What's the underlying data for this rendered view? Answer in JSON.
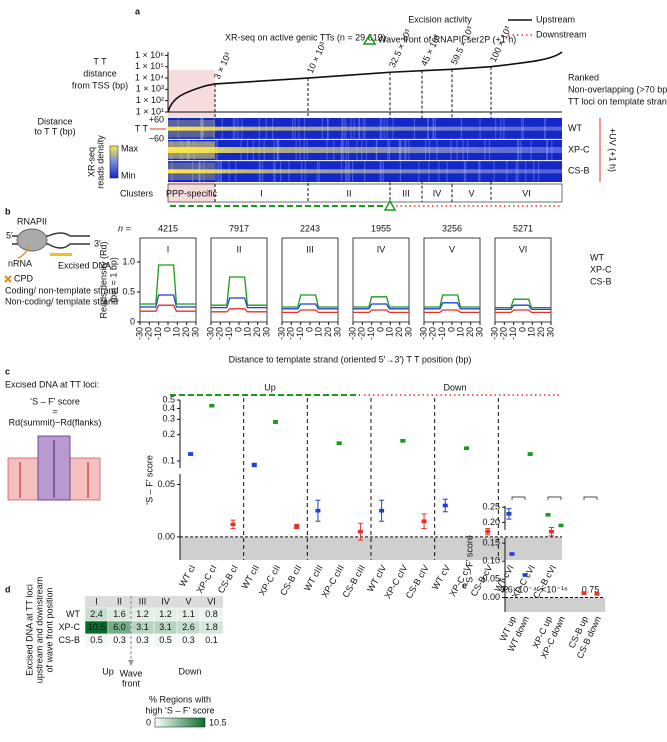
{
  "panel_a": {
    "label": "a",
    "title": "Excision activity",
    "subtitle": "XR-seq on active genic TTs (n = 29,612)",
    "legend": {
      "wave_front": "Wave front of RNAPII-ser2P (+1 h)",
      "upstream": "Upstream",
      "downstream": "Downstream"
    },
    "ylabel": [
      "T T",
      "distance",
      "from TSS (bp)"
    ],
    "yscale": "log",
    "ylim": [
      10,
      2000000
    ],
    "yticks": [
      {
        "value": 1000000,
        "label": "1 × 10⁶"
      },
      {
        "value": 100000,
        "label": "1 × 10⁵"
      },
      {
        "value": 10000,
        "label": "1 × 10⁴"
      },
      {
        "value": 1000,
        "label": "1 × 10³"
      },
      {
        "value": 100,
        "label": "1 × 10²"
      },
      {
        "value": 10,
        "label": "1 × 10¹"
      }
    ],
    "cutoffs": [
      {
        "value": 3000,
        "label": "3 × 10³"
      },
      {
        "value": 10000,
        "label": "10 × 10³"
      },
      {
        "value": 32500,
        "label": "32.5 × 10³"
      },
      {
        "value": 45000,
        "label": "45 × 10³"
      },
      {
        "value": 59500,
        "label": "59.5 × 10³"
      },
      {
        "value": 100000,
        "label": "100 × 10³"
      }
    ],
    "note": [
      "Ranked",
      "Non-overlapping (>70 bp)",
      "TT loci on template strand"
    ],
    "heatmap": {
      "distance_label": [
        "Distance",
        "to T T (bp)"
      ],
      "top": "+60",
      "center": "T T",
      "bottom": "−60",
      "rows": [
        "WT",
        "XP-C",
        "CS-B"
      ],
      "treatment": "+UV (+1 h)",
      "colorbar_label": [
        "XR-seq",
        "reads density"
      ],
      "max": "Max",
      "min": "Min"
    },
    "clusters_label": "Clusters",
    "clusters": [
      "PPP-specific",
      "I",
      "II",
      "III",
      "IV",
      "V",
      "VI"
    ]
  },
  "panel_b": {
    "label": "b",
    "diagram": {
      "rnapii": "RNAPII",
      "five": "5′",
      "three": "3′",
      "nrna": "nRNA",
      "excised": "Excised DNA",
      "cpd": "CPD",
      "coding": "Coding/ non-template strand",
      "noncoding": "Non-coding/ template strand"
    },
    "n_label": "n =",
    "counts": [
      4215,
      7917,
      2243,
      1955,
      3256,
      5271
    ],
    "panels": [
      "I",
      "II",
      "III",
      "IV",
      "V",
      "VI"
    ],
    "ylabel": [
      "Reads density (Rd)",
      "(bin = 1 bp)"
    ],
    "ylim": [
      0,
      1.4
    ],
    "yticks": [
      0,
      0.5,
      {
        "value": 1,
        "label": "1.0"
      }
    ],
    "xlim": [
      -30,
      30
    ],
    "xticks": [
      -30,
      -20,
      -10,
      0,
      10,
      20,
      30
    ],
    "xlabel": "Distance to template strand (oriented 5′→3′) T T position (bp)",
    "series": [
      {
        "name": "WT",
        "color": "#1f3fd6",
        "peaks": [
          0.45,
          0.4,
          0.3,
          0.3,
          0.32,
          0.28
        ],
        "flanks": [
          0.25,
          0.24,
          0.22,
          0.22,
          0.22,
          0.21
        ]
      },
      {
        "name": "XP-C",
        "color": "#1a9a1a",
        "peaks": [
          0.95,
          0.75,
          0.45,
          0.42,
          0.45,
          0.38
        ],
        "flanks": [
          0.3,
          0.28,
          0.25,
          0.25,
          0.25,
          0.24
        ]
      },
      {
        "name": "CS-B",
        "color": "#e8302a",
        "peaks": [
          0.28,
          0.22,
          0.2,
          0.2,
          0.2,
          0.2
        ],
        "flanks": [
          0.18,
          0.17,
          0.16,
          0.16,
          0.16,
          0.16
        ]
      }
    ]
  },
  "panel_c": {
    "label": "c",
    "heading": "Excised DNA at TT loci:",
    "formula": {
      "score": "‘S – F’ score",
      "equals": "=",
      "expression": "Rd(summit)−Rd(flanks)"
    },
    "up": "Up",
    "down": "Down",
    "ylabel": "‘S – F’ score",
    "upper": {
      "yscale": "log",
      "ylim": [
        0.083,
        0.5
      ],
      "yticks": [
        0.1,
        0.2,
        0.3,
        0.4,
        0.5
      ]
    },
    "lower": {
      "ylim": [
        -0.022,
        0.06
      ],
      "yticks": [
        {
          "value": 0,
          "label": "0.00"
        },
        {
          "value": 0.05,
          "label": "0.05"
        }
      ]
    },
    "categories": [
      "WT cI",
      "XP-C cI",
      "CS-B cI",
      "WT cII",
      "XP-C cII",
      "CS-B cII",
      "WT cIII",
      "XP-C cIII",
      "CS-B cIII",
      "WT cIV",
      "XP-C cIV",
      "CS-B cIV",
      "WT cV",
      "XP-C cV",
      "CS-B cV",
      "WT cVI",
      "XP-C cVI",
      "CS-B cVI"
    ],
    "series": [
      {
        "color": "#1f3fd6",
        "values": [
          0.12,
          0.09,
          0.025,
          0.025,
          0.03,
          0.022
        ],
        "errors": [
          0.004,
          0.004,
          0.01,
          0.01,
          0.006,
          0.005
        ]
      },
      {
        "color": "#1a9a1a",
        "values": [
          0.43,
          0.28,
          0.16,
          0.17,
          0.14,
          0.12
        ],
        "errors": [
          0.01,
          0.01,
          0.005,
          0.005,
          0.004,
          0.004
        ]
      },
      {
        "color": "#e8302a",
        "values": [
          0.012,
          0.01,
          0.005,
          0.015,
          0.005,
          0.005
        ],
        "errors": [
          0.004,
          0.002,
          0.008,
          0.007,
          0.003,
          0.004
        ]
      }
    ]
  },
  "panel_d": {
    "label": "d",
    "ylabel": [
      "Excised DNA at TT loci",
      "upstream and downstream",
      "of wave front position"
    ],
    "columns": [
      "I",
      "II",
      "III",
      "IV",
      "V",
      "VI"
    ],
    "rows": [
      {
        "name": "WT",
        "color": "#1f3fd6",
        "values": [
          "2.4",
          "1.6",
          "1.2",
          "1.2",
          "1.1",
          "0.8"
        ]
      },
      {
        "name": "XP-C",
        "color": "#1a9a1a",
        "values": [
          "10.5",
          "6.0",
          "3.1",
          "3.1",
          "2.6",
          "1.8"
        ]
      },
      {
        "name": "CS-B",
        "color": "#e8302a",
        "values": [
          "0.5",
          "0.3",
          "0.3",
          "0.5",
          "0.3",
          "0.1"
        ]
      }
    ],
    "up": "Up",
    "wave_front": [
      "Wave",
      "front"
    ],
    "down": "Down",
    "colorbar_label": [
      "% Regions with",
      "high ‘S – F’ score"
    ],
    "colorbar_lim": [
      0,
      10.5
    ]
  },
  "panel_e": {
    "label": "e",
    "p_label": "P",
    "p_values": [
      "9.6×10⁻⁴",
      "<10⁻¹⁶",
      "0.75"
    ],
    "ylabel": "‘S – F’ score",
    "upper": {
      "ylim": [
        0.175,
        0.254
      ],
      "yticks": [
        {
          "value": 0.2,
          "label": "0.20"
        },
        {
          "value": 0.25,
          "label": "0.25"
        }
      ]
    },
    "lower": {
      "ylim": [
        -0.04,
        0.164
      ],
      "yticks": [
        {
          "value": 0,
          "label": "0.00"
        },
        {
          "value": 0.05,
          "label": "0.05"
        },
        {
          "value": 0.1,
          "label": "0.10"
        },
        {
          "value": 0.15,
          "label": "0.15"
        }
      ]
    },
    "categories": [
      "WT up",
      "WT down",
      "XP-C up",
      "XP-C down",
      "CS-B up",
      "CS-B down"
    ],
    "values": [
      0.12,
      0.062,
      0.225,
      0.19,
      0.012,
      0.01
    ],
    "errors": [
      0.004,
      0.004,
      0.004,
      0.004,
      0.003,
      0.003
    ],
    "colors": [
      "#1f3fd6",
      "#1f3fd6",
      "#1a9a1a",
      "#1a9a1a",
      "#e8302a",
      "#e8302a"
    ]
  }
}
